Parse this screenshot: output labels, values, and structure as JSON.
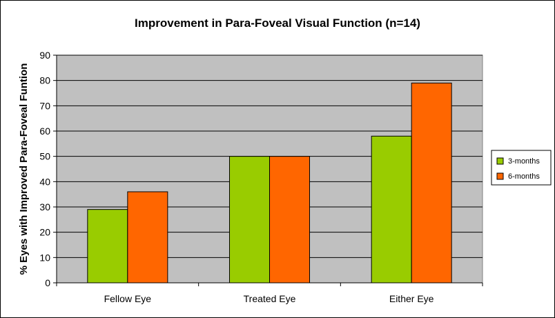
{
  "chart_data": {
    "type": "bar",
    "title": "Improvement in Para-Foveal Visual Function (n=14)",
    "xlabel": "",
    "ylabel": "% Eyes with Improved Para-Foveal Funtion",
    "categories": [
      "Fellow Eye",
      "Treated Eye",
      "Either Eye"
    ],
    "series": [
      {
        "name": "3-months",
        "color": "#99cc00",
        "values": [
          29,
          50,
          58
        ]
      },
      {
        "name": "6-months",
        "color": "#ff6600",
        "values": [
          36,
          50,
          79
        ]
      }
    ],
    "ylim": [
      0,
      90
    ],
    "yticks": [
      0,
      10,
      20,
      30,
      40,
      50,
      60,
      70,
      80,
      90
    ],
    "grid": true,
    "legend_position": "right",
    "plot_background": "#c0c0c0"
  }
}
